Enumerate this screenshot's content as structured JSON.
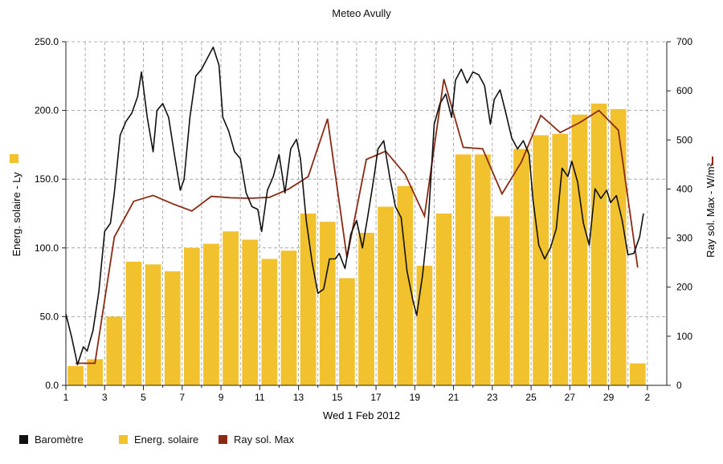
{
  "title": "Meteo  Avully",
  "colors": {
    "barometer": "#111111",
    "energy": "#f2c22e",
    "radiation": "#8b2a14",
    "grid": "#9a9a9a"
  },
  "chart_data": {
    "type": "bar",
    "xlabel": "Wed 1 Feb 2012",
    "ylabel_left": "Energ. solaire - Ly",
    "ylabel_right": "Ray sol. Max - W/m²",
    "xlim": [
      1,
      32
    ],
    "ylim_left": [
      0,
      250
    ],
    "ylim_right": [
      0,
      700
    ],
    "x_ticks": [
      "1",
      "3",
      "5",
      "7",
      "9",
      "11",
      "13",
      "15",
      "17",
      "19",
      "21",
      "23",
      "25",
      "27",
      "29",
      "2"
    ],
    "y_left_ticks": [
      "0.0",
      "50.0",
      "100.0",
      "150.0",
      "200.0",
      "250.0"
    ],
    "y_right_ticks": [
      "0",
      "100",
      "200",
      "300",
      "400",
      "500",
      "600",
      "700"
    ],
    "grid": true,
    "series": [
      {
        "name": "Energ. solaire",
        "axis": "left",
        "kind": "bar",
        "x": [
          1.5,
          2.5,
          3.5,
          4.5,
          5.5,
          6.5,
          7.5,
          8.5,
          9.5,
          10.5,
          11.5,
          12.5,
          13.5,
          14.5,
          15.5,
          16.5,
          17.5,
          18.5,
          19.5,
          20.5,
          21.5,
          22.5,
          23.5,
          24.5,
          25.5,
          26.5,
          27.5,
          28.5,
          29.5,
          30.5
        ],
        "values": [
          14,
          19,
          50,
          90,
          88,
          83,
          100,
          103,
          112,
          106,
          92,
          98,
          125,
          119,
          78,
          111,
          130,
          145,
          87,
          125,
          168,
          168,
          123,
          172,
          182,
          183,
          197,
          205,
          201,
          16
        ]
      },
      {
        "name": "Ray sol. Max",
        "axis": "right",
        "kind": "line",
        "x": [
          1.5,
          2.5,
          3.5,
          4.5,
          5.5,
          6.5,
          7.5,
          8.5,
          9.5,
          10.5,
          11.5,
          12.5,
          13.5,
          14.5,
          15.5,
          16.5,
          17.5,
          18.5,
          19.5,
          20.5,
          21.5,
          22.5,
          23.5,
          24.5,
          25.5,
          26.5,
          27.5,
          28.5,
          29.5,
          30.5
        ],
        "values": [
          45,
          45,
          302,
          375,
          387,
          370,
          355,
          385,
          382,
          381,
          383,
          400,
          425,
          543,
          260,
          460,
          477,
          430,
          345,
          624,
          485,
          482,
          390,
          455,
          550,
          515,
          535,
          560,
          520,
          240
        ]
      },
      {
        "name": "Baromètre",
        "axis": "left",
        "kind": "line",
        "x": [
          1.0,
          1.3,
          1.6,
          1.9,
          2.1,
          2.4,
          2.7,
          3.0,
          3.3,
          3.5,
          3.8,
          4.1,
          4.4,
          4.7,
          4.9,
          5.2,
          5.5,
          5.7,
          6.0,
          6.3,
          6.6,
          6.9,
          7.1,
          7.4,
          7.7,
          8.0,
          8.3,
          8.6,
          8.9,
          9.1,
          9.4,
          9.7,
          10.0,
          10.3,
          10.6,
          10.9,
          11.1,
          11.4,
          11.7,
          12.0,
          12.3,
          12.6,
          12.9,
          13.1,
          13.4,
          13.7,
          14.0,
          14.3,
          14.6,
          14.9,
          15.1,
          15.4,
          15.7,
          16.0,
          16.3,
          16.6,
          16.9,
          17.1,
          17.4,
          17.7,
          18.0,
          18.3,
          18.6,
          18.9,
          19.1,
          19.4,
          19.7,
          20.0,
          20.3,
          20.6,
          20.9,
          21.1,
          21.4,
          21.7,
          22.0,
          22.3,
          22.6,
          22.9,
          23.1,
          23.4,
          23.7,
          24.0,
          24.3,
          24.6,
          24.9,
          25.1,
          25.4,
          25.7,
          26.0,
          26.3,
          26.6,
          26.9,
          27.1,
          27.4,
          27.7,
          28.0,
          28.3,
          28.6,
          28.9,
          29.1,
          29.4,
          29.7,
          30.0,
          30.3,
          30.6,
          30.8
        ],
        "values": [
          52,
          35,
          15,
          28,
          25,
          40,
          68,
          112,
          118,
          140,
          182,
          192,
          198,
          210,
          228,
          195,
          170,
          200,
          205,
          195,
          168,
          142,
          150,
          195,
          225,
          230,
          238,
          246,
          233,
          195,
          185,
          170,
          165,
          140,
          130,
          128,
          112,
          142,
          152,
          168,
          140,
          172,
          179,
          165,
          120,
          90,
          67,
          70,
          92,
          92,
          96,
          85,
          110,
          120,
          100,
          125,
          152,
          172,
          178,
          152,
          130,
          122,
          83,
          62,
          51,
          80,
          120,
          190,
          205,
          212,
          195,
          222,
          230,
          220,
          228,
          226,
          218,
          190,
          208,
          215,
          198,
          180,
          172,
          178,
          168,
          135,
          102,
          92,
          100,
          114,
          158,
          152,
          163,
          148,
          118,
          102,
          143,
          136,
          142,
          133,
          138,
          120,
          95,
          96,
          108,
          125
        ]
      }
    ],
    "legend": [
      "Baromètre",
      "Energ. solaire",
      "Ray sol. Max"
    ],
    "legend_position": "bottom"
  }
}
